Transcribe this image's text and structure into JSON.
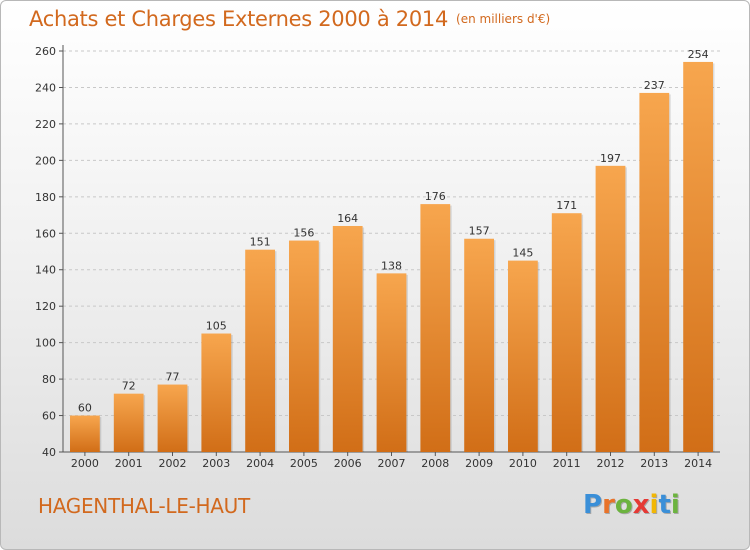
{
  "title": "Achats et Charges Externes 2000 à 2014",
  "unit": "(en milliers d'€)",
  "location": "HAGENTHAL-LE-HAUT",
  "brand": "Proxiti",
  "colors": {
    "bar_top": "#f7a64e",
    "bar_bottom": "#d16e17",
    "title": "#d2691e",
    "brand_letters": [
      "#3a8fd8",
      "#e8732a",
      "#6cb33f",
      "#e53935",
      "#f2b705",
      "#3a8fd8",
      "#6cb33f"
    ]
  },
  "chart_data": {
    "type": "bar",
    "title": "Achats et Charges Externes 2000 à 2014",
    "subtitle": "(en milliers d'€)",
    "xlabel": "",
    "ylabel": "",
    "categories": [
      "2000",
      "2001",
      "2002",
      "2003",
      "2004",
      "2005",
      "2006",
      "2007",
      "2008",
      "2009",
      "2010",
      "2011",
      "2012",
      "2013",
      "2014"
    ],
    "values": [
      60,
      72,
      77,
      105,
      151,
      156,
      164,
      138,
      176,
      157,
      145,
      171,
      197,
      237,
      254
    ],
    "ylim": [
      40,
      260
    ],
    "yticks": [
      40,
      60,
      80,
      100,
      120,
      140,
      160,
      180,
      200,
      220,
      240,
      260
    ],
    "grid": true,
    "data_labels": true
  }
}
